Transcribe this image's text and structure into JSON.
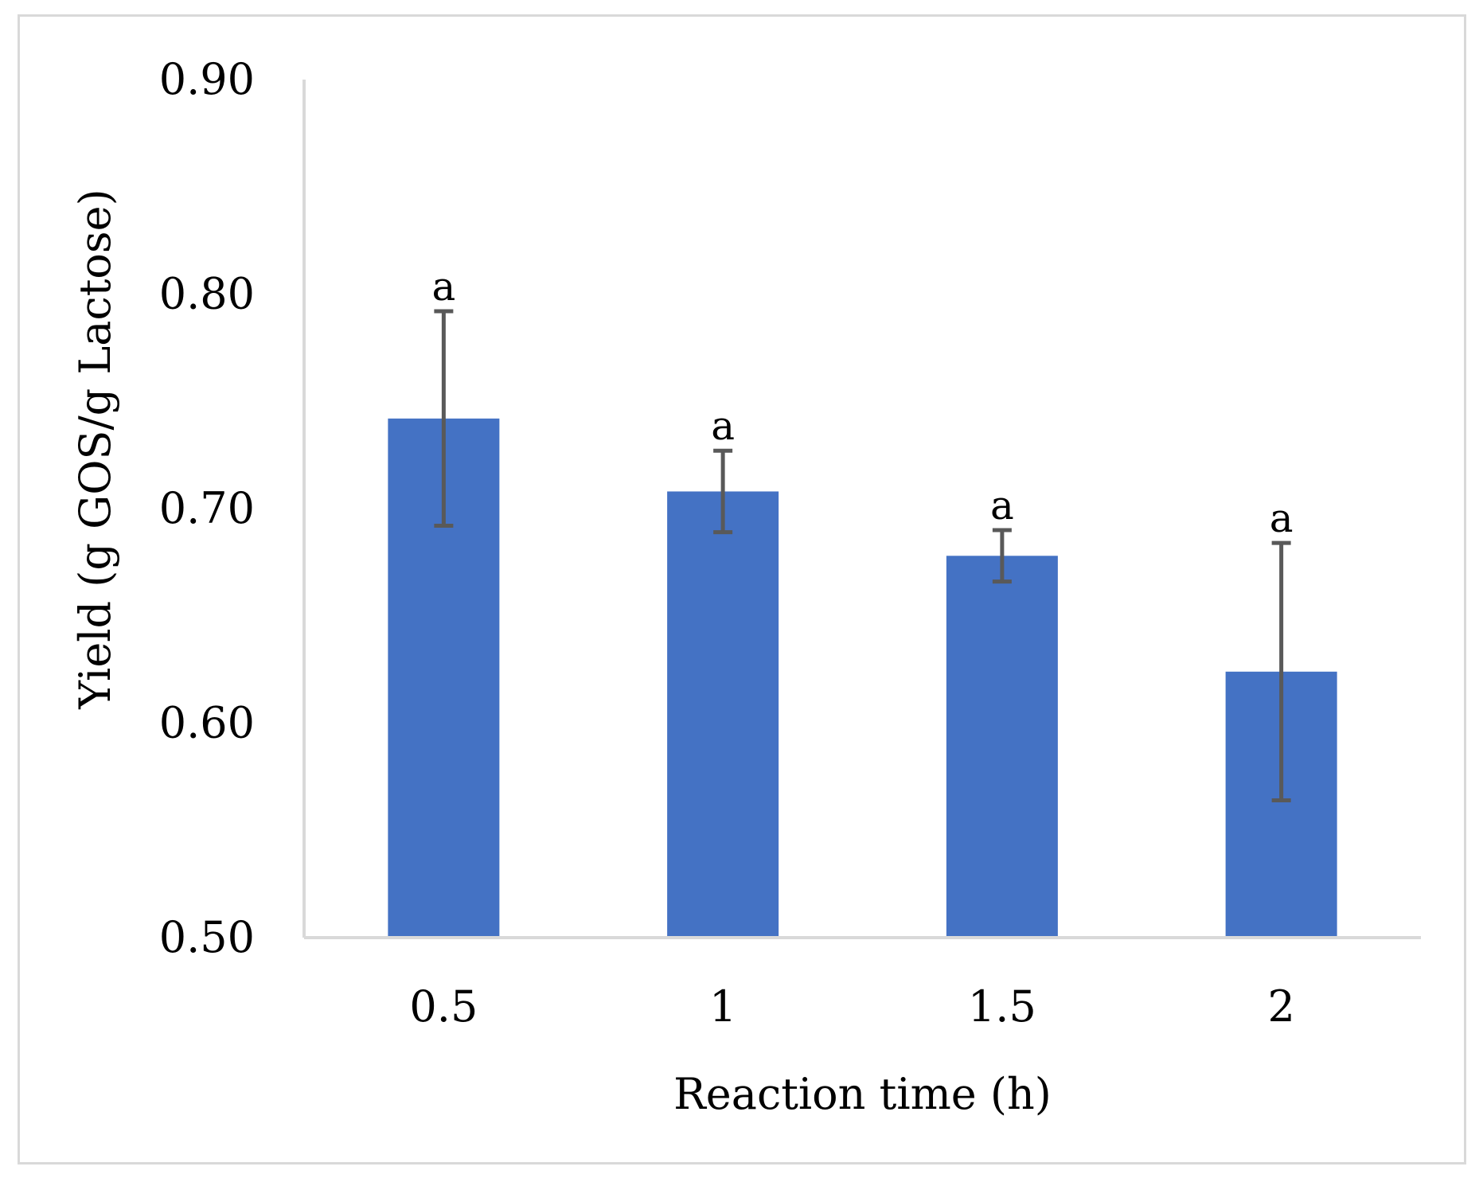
{
  "chart_data": {
    "type": "bar",
    "title": "",
    "xlabel": "Reaction time (h)",
    "ylabel": "Yield (g GOS/g Lactose)",
    "categories": [
      "0.5",
      "1",
      "1.5",
      "2"
    ],
    "values": [
      0.742,
      0.708,
      0.678,
      0.624
    ],
    "errors": [
      0.05,
      0.019,
      0.012,
      0.06
    ],
    "significance": [
      "a",
      "a",
      "a",
      "a"
    ],
    "ylim": [
      0.5,
      0.9
    ],
    "yticks": [
      0.5,
      0.6,
      0.7,
      0.8,
      0.9
    ],
    "ytick_labels": [
      "0.50",
      "0.60",
      "0.70",
      "0.80",
      "0.90"
    ],
    "grid": false,
    "legend": "none"
  },
  "colors": {
    "bar": "#4472c4",
    "error_bar": "#595959",
    "axis": "#d9d9d9",
    "frame": "#d9d9d9",
    "text": "#000000"
  }
}
